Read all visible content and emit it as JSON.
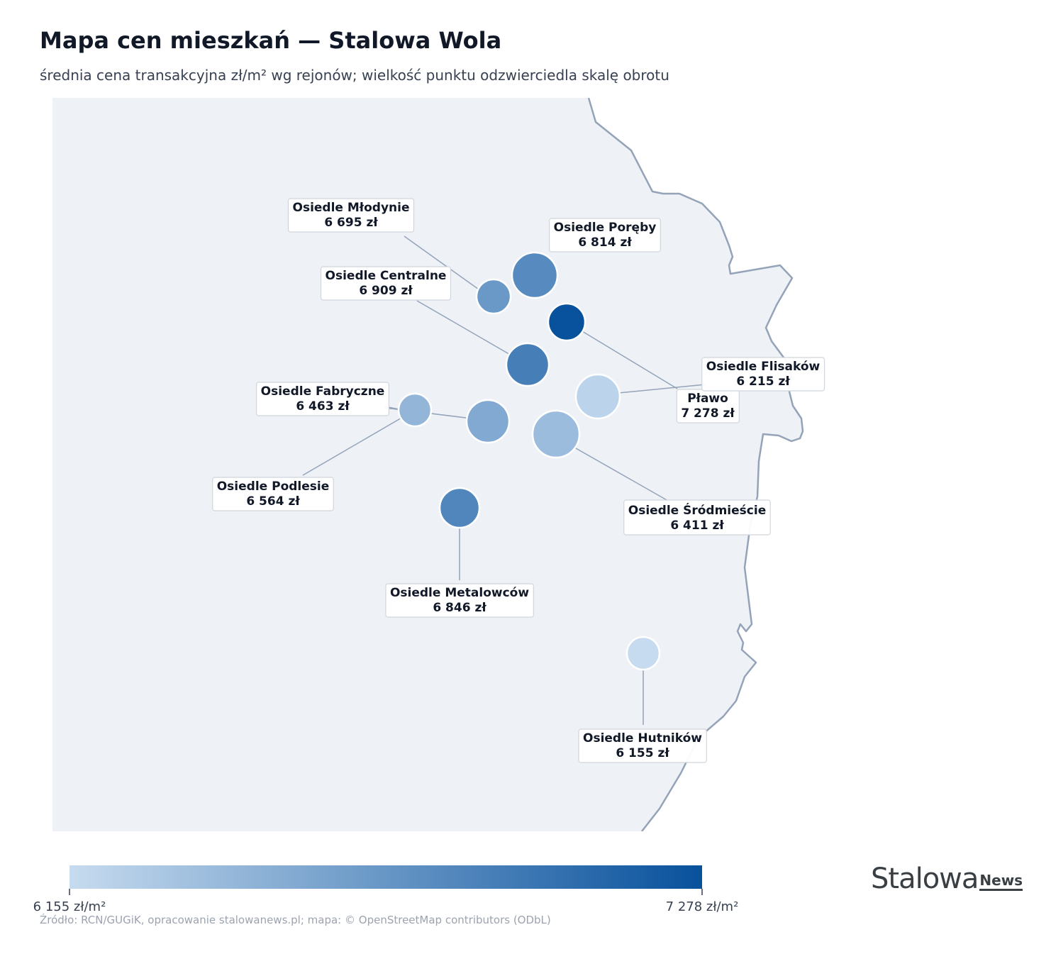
{
  "title": "Mapa cen mieszkań — Stalowa Wola",
  "subtitle": "średnia cena transakcyjna zł/m² wg rejonów; wielkość punktu odzwierciedla skalę obrotu",
  "legend": {
    "min_label": "6 155 zł/m²",
    "max_label": "7 278 zł/m²",
    "min_value": 6155,
    "max_value": 7278,
    "color_low": "#c6dbef",
    "color_high": "#08519c"
  },
  "source": "Źródło: RCN/GUGiK, opracowanie stalowanews.pl; mapa: © OpenStreetMap contributors (ODbL)",
  "brand": {
    "main": "Stalowa",
    "news": "News"
  },
  "colors": {
    "map_fill": "#eef2f7",
    "border": "#94a3b8",
    "leader": "#94a3b8"
  },
  "districts": [
    {
      "name": "Osiedle Młodynie",
      "price": 6695,
      "price_label": "6 695 zł"
    },
    {
      "name": "Osiedle Poręby",
      "price": 6814,
      "price_label": "6 814 zł"
    },
    {
      "name": "Osiedle Centralne",
      "price": 6909,
      "price_label": "6 909 zł"
    },
    {
      "name": "Pławo",
      "price": 7278,
      "price_label": "7 278 zł"
    },
    {
      "name": "Osiedle Flisaków",
      "price": 6215,
      "price_label": "6 215 zł"
    },
    {
      "name": "Osiedle Fabryczne",
      "price": 6463,
      "price_label": "6 463 zł"
    },
    {
      "name": "Osiedle Podlesie",
      "price": 6564,
      "price_label": "6 564 zł"
    },
    {
      "name": "Osiedle Śródmieście",
      "price": 6411,
      "price_label": "6 411 zł"
    },
    {
      "name": "Osiedle Metalowców",
      "price": 6846,
      "price_label": "6 846 zł"
    },
    {
      "name": "Osiedle Hutników",
      "price": 6155,
      "price_label": "6 155 zł"
    }
  ]
}
